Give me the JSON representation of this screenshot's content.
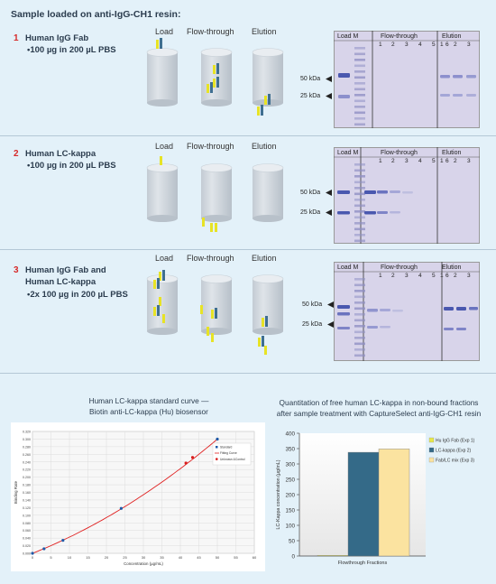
{
  "header": {
    "title": "Sample loaded on anti-IgG-CH1 resin:"
  },
  "columns": {
    "load": "Load",
    "flow": "Flow-through",
    "elution": "Elution"
  },
  "samples": [
    {
      "num": "1",
      "name_line1": "Human IgG Fab",
      "name_line2": "",
      "amount": "•100 µg in 200 µL PBS"
    },
    {
      "num": "2",
      "name_line1": "Human LC-kappa",
      "name_line2": "",
      "amount": "•100 µg in 200 µL PBS"
    },
    {
      "num": "3",
      "name_line1": "Human IgG Fab and",
      "name_line2": "Human LC-kappa",
      "amount": "•2x 100 µg in 200 µL PBS"
    }
  ],
  "gels": [
    {
      "load_m": "Load M",
      "flow": "Flow-through",
      "elution": "Elution",
      "flow_lanes": [
        "1",
        "2",
        "3",
        "4",
        "5",
        "6"
      ],
      "elution_lanes": [
        "1",
        "2",
        "3"
      ]
    },
    {
      "load_m": "Load M",
      "flow": "Flow-through",
      "elution": "Elution",
      "flow_lanes": [
        "1",
        "2",
        "3",
        "4",
        "5",
        "6"
      ],
      "elution_lanes": [
        "1",
        "2",
        "3"
      ]
    },
    {
      "load_m": "Load M",
      "flow": "Flow-through",
      "elution": "Elution",
      "flow_lanes": [
        "1",
        "2",
        "3",
        "4",
        "5",
        "6"
      ],
      "elution_lanes": [
        "1",
        "2",
        "3"
      ]
    }
  ],
  "mw": {
    "kda50": "50 kDa",
    "kda25": "25 kDa"
  },
  "colors": {
    "fab_yellow": "#e7e325",
    "fab_blue": "#3f6f90",
    "lc_yellow": "#e4e31e",
    "gel_bg": "#d8d4ea",
    "curve": "#e02020"
  },
  "chart_data": [
    {
      "type": "line",
      "title": "Human LC-kappa standard curve —",
      "subtitle": "Biotin anti-LC-kappa (Hu) biosensor",
      "xlabel": "Concentration (µg/mL)",
      "ylabel": "Binding Rate",
      "xlim": [
        0,
        60
      ],
      "ylim": [
        0,
        0.32
      ],
      "xticks": [
        "0",
        "5",
        "10",
        "15",
        "20",
        "25",
        "30",
        "35",
        "40",
        "45",
        "50",
        "55",
        "60"
      ],
      "yticks": [
        "0.000",
        "0.020",
        "0.040",
        "0.060",
        "0.080",
        "0.100",
        "0.120",
        "0.140",
        "0.160",
        "0.180",
        "0.200",
        "0.220",
        "0.240",
        "0.260",
        "0.280",
        "0.300",
        "0.320"
      ],
      "legend": [
        "Standard",
        "Fitting Curve",
        "Unknown &Control"
      ],
      "legend_position": "right",
      "grid": true,
      "series": [
        {
          "name": "Standard",
          "x": [
            0,
            3.125,
            8.25,
            24,
            50
          ],
          "y": [
            0,
            0.012,
            0.034,
            0.118,
            0.3
          ]
        },
        {
          "name": "Unknown &Control",
          "x": [
            41.5,
            43.3
          ],
          "y": [
            0.237,
            0.252
          ]
        }
      ]
    },
    {
      "type": "bar",
      "title": "Quantitation of free human LC-kappa in non-bound fractions",
      "subtitle": "after sample treatment with CaptureSelect anti-IgG-CH1 resin",
      "xlabel": "Flowthrough Fractions",
      "ylabel": "LC-Kappa concentration (µg/mL)",
      "ylim": [
        0,
        400
      ],
      "yticks": [
        "0",
        "50",
        "100",
        "150",
        "200",
        "250",
        "300",
        "350",
        "400"
      ],
      "legend_position": "right",
      "series": [
        {
          "name": "Hu IgG Fab (Exp 1)",
          "values": [
            2
          ],
          "color": "#e8e84a"
        },
        {
          "name": "LC-kappa (Exp 2)",
          "values": [
            338
          ],
          "color": "#346a88"
        },
        {
          "name": "Fab/LC mix (Exp 3)",
          "values": [
            349
          ],
          "color": "#fbe3a0"
        }
      ]
    }
  ]
}
